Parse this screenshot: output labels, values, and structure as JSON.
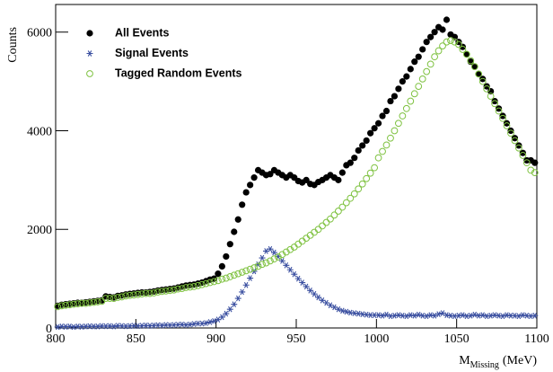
{
  "chart_data": {
    "type": "scatter",
    "y_label": "Counts",
    "x_label": {
      "symbol": "M",
      "subscript": "Missing",
      "unit": "(MeV)"
    },
    "xlim": [
      800,
      1100
    ],
    "xticks": [
      800,
      850,
      900,
      950,
      1000,
      1050,
      1100
    ],
    "ylim": [
      0,
      6560
    ],
    "yticks": [
      0,
      2000,
      4000,
      6000
    ],
    "legend": "top-left",
    "x": [
      801.25,
      803.75,
      806.25,
      808.75,
      811.25,
      813.75,
      816.25,
      818.75,
      821.25,
      823.75,
      826.25,
      828.75,
      831.25,
      833.75,
      836.25,
      838.75,
      841.25,
      843.75,
      846.25,
      848.75,
      851.25,
      853.75,
      856.25,
      858.75,
      861.25,
      863.75,
      866.25,
      868.75,
      871.25,
      873.75,
      876.25,
      878.75,
      881.25,
      883.75,
      886.25,
      888.75,
      891.25,
      893.75,
      896.25,
      898.75,
      901.25,
      903.75,
      906.25,
      908.75,
      911.25,
      913.75,
      916.25,
      918.75,
      921.25,
      923.75,
      926.25,
      928.75,
      931.25,
      933.75,
      936.25,
      938.75,
      941.25,
      943.75,
      946.25,
      948.75,
      951.25,
      953.75,
      956.25,
      958.75,
      961.25,
      963.75,
      966.25,
      968.75,
      971.25,
      973.75,
      976.25,
      978.75,
      981.25,
      983.75,
      986.25,
      988.75,
      991.25,
      993.75,
      996.25,
      998.75,
      1001.25,
      1003.75,
      1006.25,
      1008.75,
      1011.25,
      1013.75,
      1016.25,
      1018.75,
      1021.25,
      1023.75,
      1026.25,
      1028.75,
      1031.25,
      1033.75,
      1036.25,
      1038.75,
      1041.25,
      1043.75,
      1046.25,
      1048.75,
      1051.25,
      1053.75,
      1056.25,
      1058.75,
      1061.25,
      1063.75,
      1066.25,
      1068.75,
      1071.25,
      1073.75,
      1076.25,
      1078.75,
      1081.25,
      1083.75,
      1086.25,
      1088.75,
      1091.25,
      1093.75,
      1096.25,
      1098.75
    ],
    "series": [
      {
        "name": "All Events",
        "color": "#000000",
        "marker": "dot",
        "values": [
          450,
          470,
          480,
          490,
          500,
          510,
          510,
          520,
          530,
          540,
          550,
          560,
          640,
          630,
          620,
          650,
          660,
          680,
          690,
          700,
          710,
          720,
          720,
          730,
          740,
          760,
          770,
          780,
          790,
          800,
          820,
          840,
          860,
          870,
          880,
          900,
          920,
          950,
          980,
          1000,
          1100,
          1250,
          1450,
          1700,
          1950,
          2200,
          2500,
          2750,
          2900,
          3050,
          3200,
          3150,
          3100,
          3120,
          3200,
          3150,
          3100,
          3050,
          3100,
          3050,
          2980,
          2950,
          3000,
          2920,
          2900,
          2960,
          3000,
          3050,
          3100,
          3050,
          3000,
          3150,
          3300,
          3350,
          3450,
          3600,
          3700,
          3800,
          3950,
          4050,
          4150,
          4300,
          4400,
          4600,
          4700,
          4850,
          5000,
          5100,
          5250,
          5400,
          5500,
          5650,
          5800,
          5900,
          6000,
          6100,
          6050,
          6250,
          5950,
          5900,
          5800,
          5700,
          5550,
          5400,
          5300,
          5150,
          5050,
          4900,
          4800,
          4600,
          4450,
          4300,
          4150,
          4000,
          3850,
          3700,
          3550,
          3400,
          3400,
          3350
        ]
      },
      {
        "name": "Signal Events",
        "color": "#3a4fa0",
        "marker": "star",
        "values": [
          20,
          30,
          25,
          30,
          20,
          30,
          25,
          30,
          35,
          30,
          30,
          40,
          35,
          40,
          30,
          45,
          40,
          35,
          40,
          45,
          40,
          45,
          50,
          45,
          50,
          55,
          50,
          60,
          55,
          60,
          65,
          70,
          60,
          70,
          80,
          90,
          90,
          100,
          120,
          140,
          170,
          220,
          290,
          380,
          480,
          600,
          730,
          870,
          1010,
          1150,
          1290,
          1420,
          1560,
          1600,
          1530,
          1450,
          1360,
          1270,
          1180,
          1090,
          1000,
          920,
          840,
          760,
          690,
          620,
          560,
          510,
          460,
          420,
          380,
          350,
          330,
          310,
          300,
          290,
          280,
          270,
          260,
          260,
          260,
          250,
          270,
          240,
          250,
          260,
          250,
          240,
          260,
          250,
          270,
          250,
          240,
          260,
          250,
          280,
          300,
          260,
          250,
          240,
          250,
          260,
          240,
          250,
          270,
          250,
          260,
          240,
          250,
          260,
          250,
          240,
          260,
          250,
          250,
          240,
          260,
          250,
          240,
          250
        ]
      },
      {
        "name": "Tagged Random Events",
        "color": "#7fc241",
        "marker": "ring",
        "values": [
          430,
          450,
          460,
          470,
          480,
          490,
          500,
          500,
          510,
          520,
          530,
          540,
          600,
          600,
          600,
          620,
          630,
          650,
          660,
          670,
          680,
          690,
          700,
          700,
          710,
          730,
          740,
          750,
          760,
          770,
          790,
          800,
          820,
          830,
          840,
          860,
          880,
          900,
          920,
          940,
          960,
          990,
          1010,
          1040,
          1070,
          1100,
          1130,
          1160,
          1190,
          1220,
          1250,
          1290,
          1320,
          1360,
          1400,
          1440,
          1490,
          1540,
          1590,
          1640,
          1700,
          1760,
          1820,
          1880,
          1940,
          2000,
          2070,
          2140,
          2210,
          2290,
          2370,
          2450,
          2540,
          2630,
          2720,
          2820,
          2920,
          3030,
          3140,
          3250,
          3450,
          3580,
          3710,
          3850,
          4000,
          4150,
          4300,
          4450,
          4600,
          4750,
          4900,
          5050,
          5200,
          5350,
          5500,
          5620,
          5720,
          5800,
          5830,
          5800,
          5750,
          5650,
          5550,
          5420,
          5300,
          5150,
          5000,
          4850,
          4700,
          4550,
          4400,
          4250,
          4100,
          3950,
          3800,
          3650,
          3500,
          3350,
          3200,
          3150
        ]
      }
    ]
  }
}
